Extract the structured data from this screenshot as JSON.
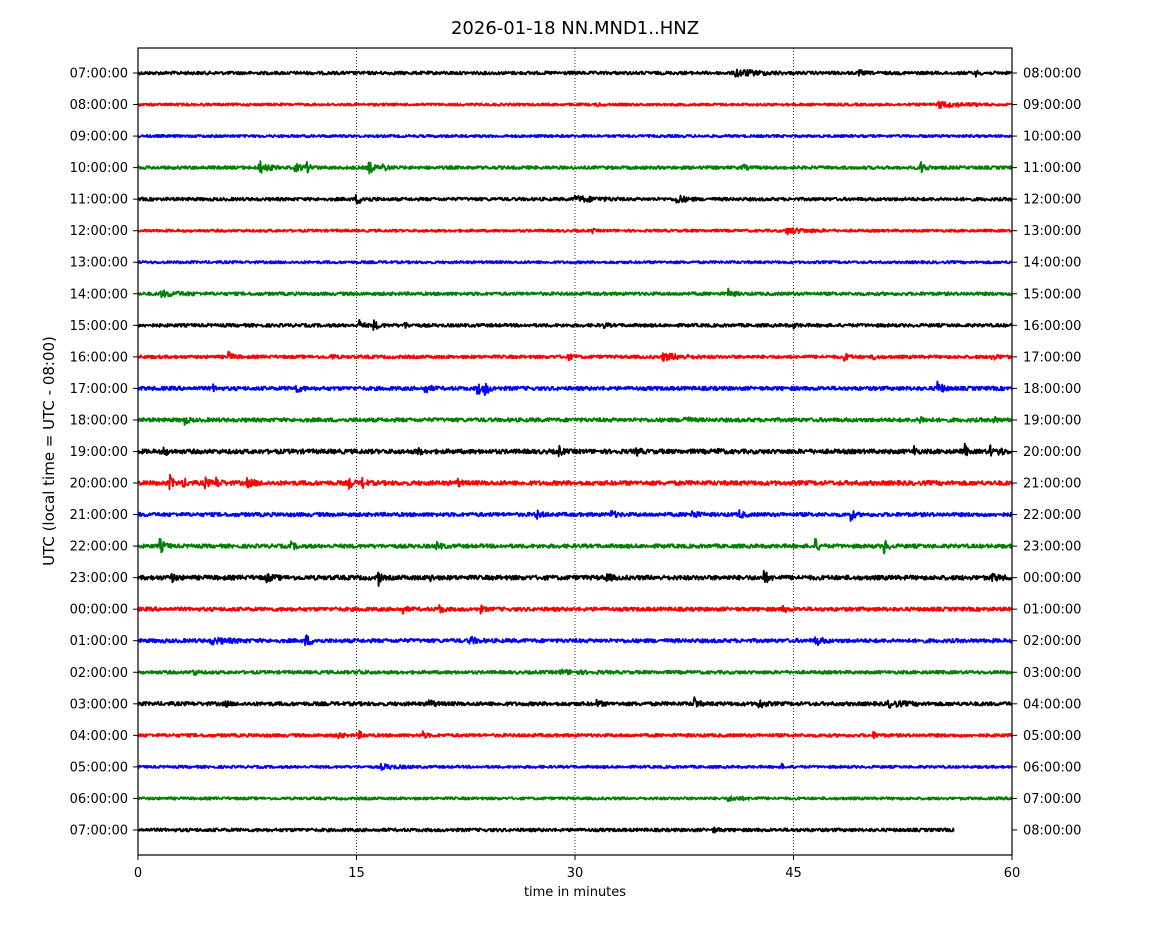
{
  "chart_data": {
    "type": "line",
    "title": "2026-01-18 NN.MND1..HNZ",
    "xlabel": "time in minutes",
    "ylabel": "UTC (local time = UTC - 08:00)",
    "xlim": [
      0,
      60
    ],
    "xticks": [
      "0",
      "15",
      "30",
      "45",
      "60"
    ],
    "xtick_values": [
      0,
      15,
      30,
      45,
      60
    ],
    "grid_x": [
      15,
      30,
      45
    ],
    "colors": [
      "#000000",
      "#ff0000",
      "#0000ff",
      "#008000"
    ],
    "left_labels": [
      "07:00:00",
      "08:00:00",
      "09:00:00",
      "10:00:00",
      "11:00:00",
      "12:00:00",
      "13:00:00",
      "14:00:00",
      "15:00:00",
      "16:00:00",
      "17:00:00",
      "18:00:00",
      "19:00:00",
      "20:00:00",
      "21:00:00",
      "22:00:00",
      "23:00:00",
      "00:00:00",
      "01:00:00",
      "02:00:00",
      "03:00:00",
      "04:00:00",
      "05:00:00",
      "06:00:00",
      "07:00:00"
    ],
    "right_labels": [
      "08:00:00",
      "09:00:00",
      "10:00:00",
      "11:00:00",
      "12:00:00",
      "13:00:00",
      "14:00:00",
      "15:00:00",
      "16:00:00",
      "17:00:00",
      "18:00:00",
      "19:00:00",
      "20:00:00",
      "21:00:00",
      "22:00:00",
      "23:00:00",
      "00:00:00",
      "01:00:00",
      "02:00:00",
      "03:00:00",
      "04:00:00",
      "05:00:00",
      "06:00:00",
      "07:00:00",
      "08:00:00"
    ],
    "traces": [
      {
        "end_minute": 60,
        "noise": 0.05,
        "events": [
          [
            41,
            0.1,
            1.5
          ],
          [
            49.5,
            0.1,
            0.2
          ],
          [
            57.5,
            0.08,
            0.2
          ]
        ]
      },
      {
        "end_minute": 60,
        "noise": 0.04,
        "events": [
          [
            55,
            0.08,
            1.5
          ],
          [
            31.5,
            0.06,
            0.2
          ]
        ]
      },
      {
        "end_minute": 60,
        "noise": 0.04,
        "events": []
      },
      {
        "end_minute": 60,
        "noise": 0.05,
        "events": [
          [
            8.3,
            0.2,
            0.5
          ],
          [
            10.8,
            0.1,
            0.5
          ],
          [
            11.5,
            0.16,
            0.3
          ],
          [
            15.8,
            0.22,
            0.3
          ],
          [
            16.8,
            0.1,
            0.3
          ],
          [
            41.5,
            0.1,
            0.2
          ],
          [
            53.7,
            0.2,
            0.3
          ]
        ]
      },
      {
        "end_minute": 60,
        "noise": 0.05,
        "events": [
          [
            15,
            0.12,
            0.6
          ],
          [
            30,
            0.08,
            1.5
          ],
          [
            37,
            0.13,
            0.5
          ]
        ]
      },
      {
        "end_minute": 60,
        "noise": 0.04,
        "events": [
          [
            44.5,
            0.09,
            1.2
          ],
          [
            31.2,
            0.07,
            0.1
          ]
        ]
      },
      {
        "end_minute": 60,
        "noise": 0.04,
        "events": []
      },
      {
        "end_minute": 60,
        "noise": 0.05,
        "events": [
          [
            1.5,
            0.08,
            1.2
          ],
          [
            40.5,
            0.13,
            0.3
          ]
        ]
      },
      {
        "end_minute": 60,
        "noise": 0.05,
        "events": [
          [
            15.2,
            0.17,
            0.2
          ],
          [
            16.2,
            0.13,
            0.3
          ],
          [
            18.3,
            0.08,
            0.2
          ],
          [
            32,
            0.07,
            0.2
          ],
          [
            45,
            0.07,
            0.2
          ]
        ]
      },
      {
        "end_minute": 60,
        "noise": 0.05,
        "events": [
          [
            6.2,
            0.13,
            0.3
          ],
          [
            13.3,
            0.07,
            0.2
          ],
          [
            29.5,
            0.08,
            0.3
          ],
          [
            36,
            0.1,
            1.2
          ],
          [
            48.5,
            0.1,
            0.3
          ],
          [
            50.5,
            0.08,
            0.2
          ],
          [
            58.5,
            0.08,
            0.5
          ]
        ]
      },
      {
        "end_minute": 60,
        "noise": 0.06,
        "events": [
          [
            10.8,
            0.13,
            0.3
          ],
          [
            19.7,
            0.13,
            0.3
          ],
          [
            23.3,
            0.2,
            0.3
          ],
          [
            23.8,
            0.16,
            0.3
          ],
          [
            54.9,
            0.2,
            0.3
          ],
          [
            5.2,
            0.08,
            0.2
          ]
        ]
      },
      {
        "end_minute": 60,
        "noise": 0.06,
        "events": [
          [
            3.2,
            0.13,
            0.2
          ],
          [
            37.5,
            0.1,
            0.3
          ],
          [
            53.7,
            0.1,
            0.3
          ],
          [
            58.7,
            0.1,
            0.2
          ]
        ]
      },
      {
        "end_minute": 60,
        "noise": 0.07,
        "events": [
          [
            1.8,
            0.13,
            0.2
          ],
          [
            19.2,
            0.1,
            0.2
          ],
          [
            28.9,
            0.13,
            0.2
          ],
          [
            34.2,
            0.13,
            0.2
          ],
          [
            39.7,
            0.1,
            0.2
          ],
          [
            53.3,
            0.26,
            0.1
          ],
          [
            56.8,
            0.22,
            0.1
          ],
          [
            58.5,
            0.18,
            0.1
          ],
          [
            59.1,
            0.15,
            0.2
          ]
        ]
      },
      {
        "end_minute": 60,
        "noise": 0.07,
        "events": [
          [
            2.2,
            0.2,
            0.2
          ],
          [
            3.1,
            0.16,
            0.2
          ],
          [
            4.6,
            0.16,
            0.2
          ],
          [
            5.3,
            0.16,
            0.3
          ],
          [
            7.5,
            0.1,
            0.5
          ],
          [
            14.5,
            0.16,
            0.2
          ],
          [
            15.4,
            0.16,
            0.2
          ],
          [
            21.9,
            0.13,
            0.2
          ]
        ]
      },
      {
        "end_minute": 60,
        "noise": 0.06,
        "events": [
          [
            27.3,
            0.13,
            0.3
          ],
          [
            32.5,
            0.1,
            0.3
          ],
          [
            38,
            0.13,
            0.3
          ],
          [
            41.3,
            0.13,
            0.2
          ],
          [
            48.9,
            0.2,
            0.2
          ]
        ]
      },
      {
        "end_minute": 60,
        "noise": 0.06,
        "events": [
          [
            1.5,
            0.2,
            0.3
          ],
          [
            10.5,
            0.1,
            0.3
          ],
          [
            20.5,
            0.1,
            0.3
          ],
          [
            46.5,
            0.22,
            0.2
          ],
          [
            51.2,
            0.26,
            0.2
          ]
        ]
      },
      {
        "end_minute": 60,
        "noise": 0.07,
        "events": [
          [
            2.3,
            0.1,
            0.3
          ],
          [
            8.8,
            0.1,
            0.4
          ],
          [
            16.5,
            0.33,
            0.1
          ],
          [
            20.1,
            0.13,
            0.1
          ],
          [
            32.2,
            0.1,
            0.3
          ],
          [
            43,
            0.22,
            0.2
          ],
          [
            58.5,
            0.1,
            0.5
          ]
        ]
      },
      {
        "end_minute": 60,
        "noise": 0.06,
        "events": [
          [
            18.2,
            0.1,
            0.2
          ],
          [
            20.7,
            0.13,
            0.2
          ],
          [
            23.5,
            0.1,
            0.2
          ],
          [
            44.3,
            0.1,
            0.2
          ]
        ]
      },
      {
        "end_minute": 60,
        "noise": 0.06,
        "events": [
          [
            5,
            0.08,
            1.2
          ],
          [
            11.5,
            0.16,
            0.4
          ],
          [
            22.8,
            0.1,
            0.4
          ],
          [
            46.5,
            0.13,
            0.4
          ]
        ]
      },
      {
        "end_minute": 60,
        "noise": 0.05,
        "events": [
          [
            3.8,
            0.1,
            0.2
          ],
          [
            15,
            0.06,
            0.4
          ],
          [
            29,
            0.05,
            1.5
          ]
        ]
      },
      {
        "end_minute": 60,
        "noise": 0.06,
        "events": [
          [
            6,
            0.08,
            0.2
          ],
          [
            20,
            0.1,
            0.3
          ],
          [
            31.5,
            0.08,
            0.3
          ],
          [
            38.2,
            0.2,
            0.2
          ],
          [
            42.6,
            0.16,
            0.3
          ],
          [
            51.5,
            0.08,
            1
          ]
        ]
      },
      {
        "end_minute": 60,
        "noise": 0.05,
        "events": [
          [
            13.8,
            0.1,
            0.2
          ],
          [
            15.2,
            0.1,
            0.2
          ],
          [
            19.5,
            0.13,
            0.2
          ],
          [
            50.5,
            0.08,
            0.2
          ]
        ]
      },
      {
        "end_minute": 60,
        "noise": 0.04,
        "events": [
          [
            16.7,
            0.07,
            1
          ],
          [
            44.2,
            0.08,
            0.1
          ]
        ]
      },
      {
        "end_minute": 60,
        "noise": 0.04,
        "events": [
          [
            40.5,
            0.06,
            1
          ]
        ]
      },
      {
        "end_minute": 56,
        "noise": 0.05,
        "events": [
          [
            39.5,
            0.06,
            0.3
          ]
        ]
      }
    ]
  }
}
